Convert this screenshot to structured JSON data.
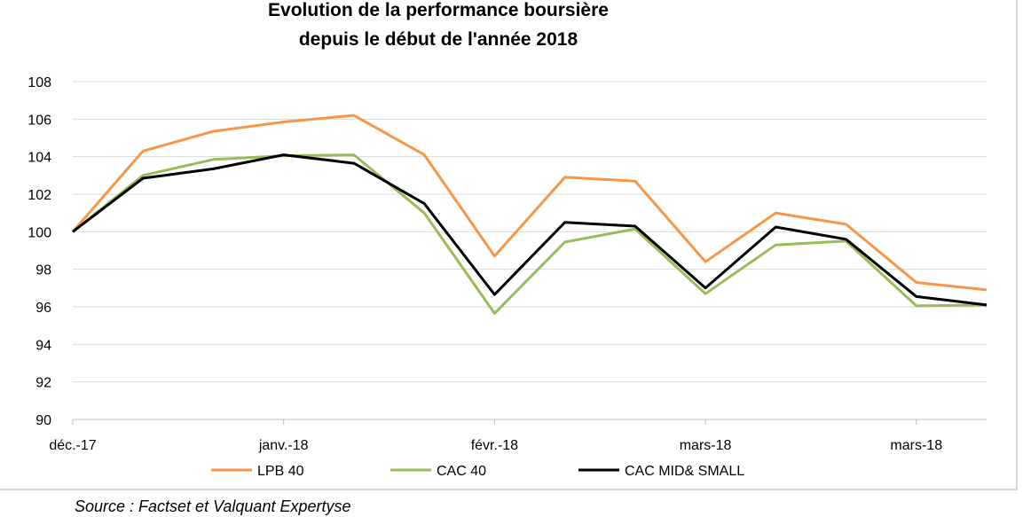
{
  "chart_data": {
    "type": "line",
    "title_lines": [
      "Evolution de la performance boursière",
      "depuis le début de l'année 2018"
    ],
    "x_labels": [
      "déc.-17",
      "janv.-18",
      "févr.-18",
      "mars-18",
      "mars-18"
    ],
    "x_label_indices": [
      0,
      3,
      6,
      9,
      12
    ],
    "ylim": [
      90,
      108
    ],
    "y_ticks": [
      90,
      92,
      94,
      96,
      98,
      100,
      102,
      104,
      106,
      108
    ],
    "grid": true,
    "legend_position": "bottom",
    "series": [
      {
        "name": "LPB 40",
        "color": "#f79646",
        "values": [
          100.0,
          104.3,
          105.35,
          105.85,
          106.2,
          104.1,
          98.7,
          102.9,
          102.7,
          98.4,
          101.0,
          100.4,
          97.3,
          96.9
        ]
      },
      {
        "name": "CAC 40",
        "color": "#9bbb59",
        "values": [
          100.0,
          103.0,
          103.85,
          104.05,
          104.1,
          101.0,
          95.65,
          99.45,
          100.15,
          96.7,
          99.3,
          99.5,
          96.05,
          96.1
        ]
      },
      {
        "name": "CAC MID& SMALL",
        "color": "#000000",
        "values": [
          100.0,
          102.85,
          103.35,
          104.1,
          103.65,
          101.5,
          96.65,
          100.5,
          100.3,
          97.0,
          100.25,
          99.6,
          96.55,
          96.1
        ]
      }
    ]
  },
  "source": "Source : Factset et Valquant Expertyse"
}
